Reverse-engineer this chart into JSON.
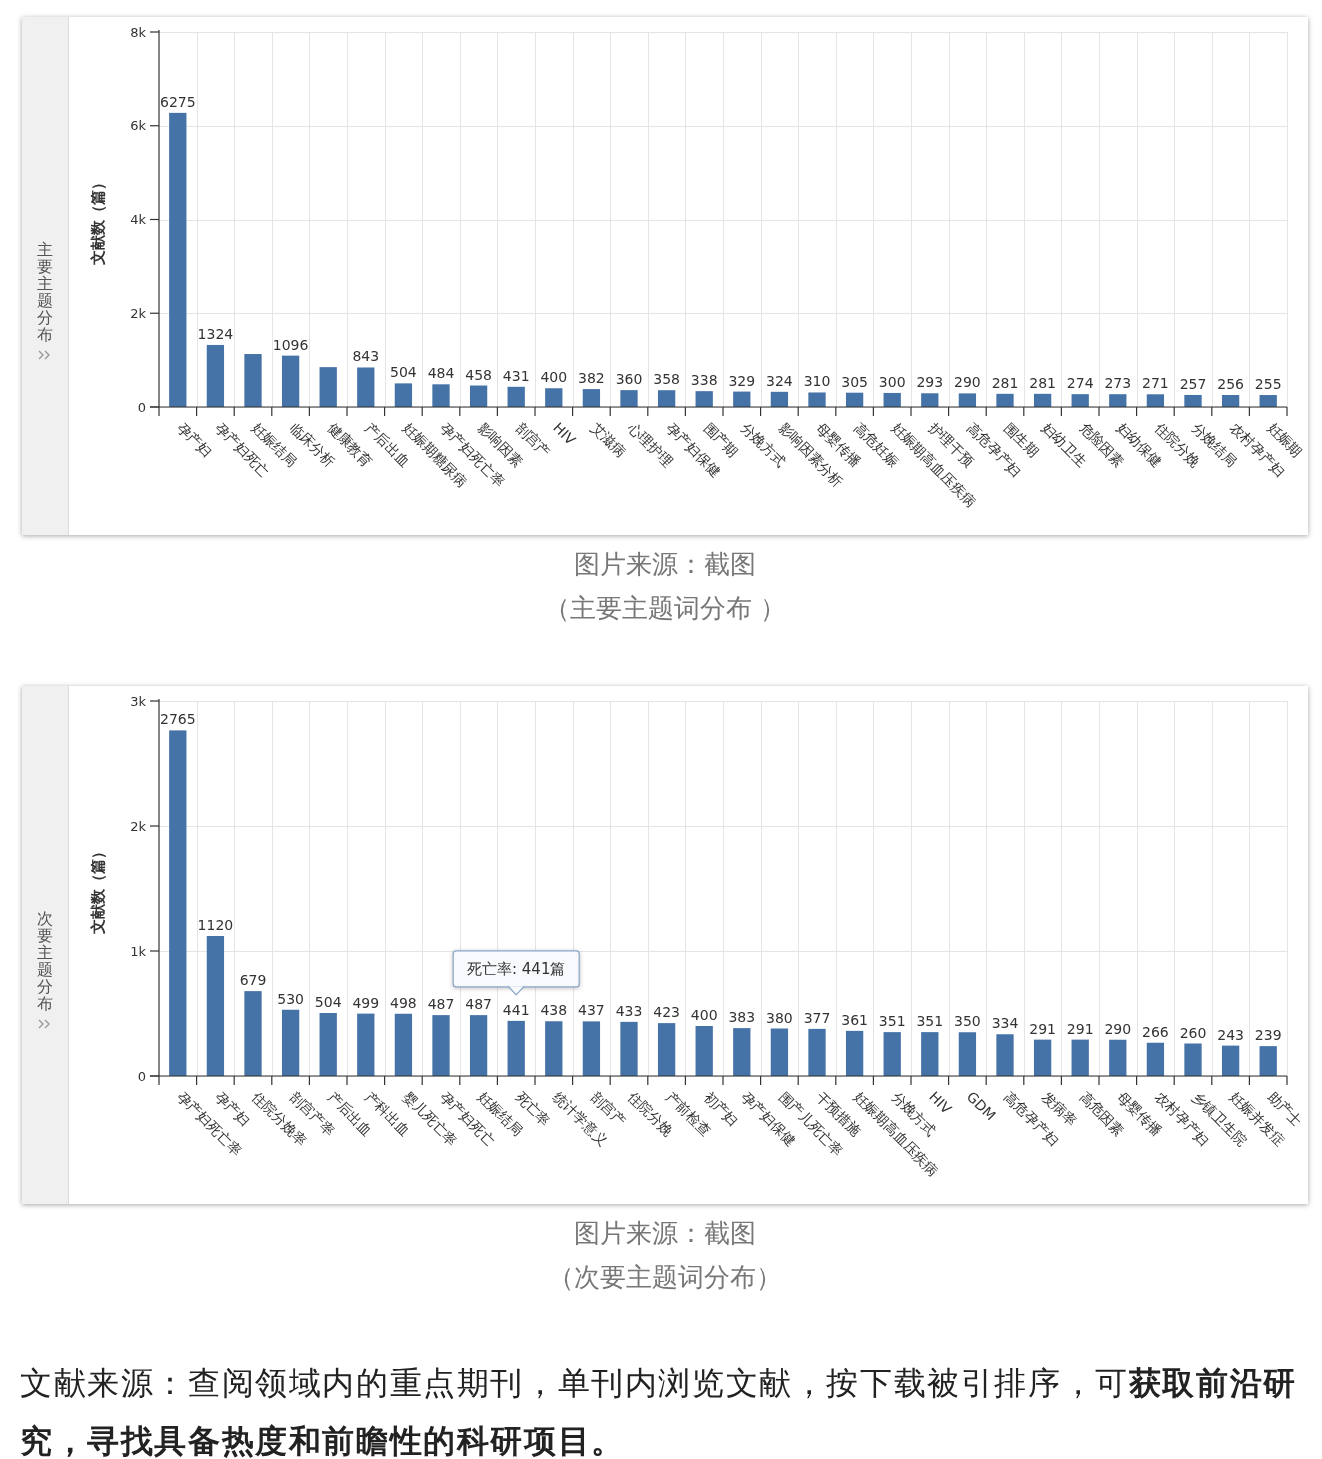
{
  "chart_data": [
    {
      "type": "bar",
      "title": "主要主题分布",
      "ylabel": "文献数（篇）",
      "categories": [
        "孕产妇",
        "孕产妇死亡",
        "妊娠结局",
        "临床分析",
        "健康教育",
        "产后出血",
        "妊娠期糖尿病",
        "孕产妇死亡率",
        "影响因素",
        "剖宫产",
        "HIV",
        "艾滋病",
        "心理护理",
        "孕产妇保健",
        "围产期",
        "分娩方式",
        "影响因素分析",
        "母婴传播",
        "高危妊娠",
        "妊娠期高血压疾病",
        "护理干预",
        "高危孕产妇",
        "围生期",
        "妇幼卫生",
        "危险因素",
        "妇幼保健",
        "住院分娩",
        "分娩结局",
        "农村孕产妇",
        "妊娠期"
      ],
      "values": [
        6275,
        1324,
        1130,
        1096,
        850,
        843,
        504,
        484,
        458,
        431,
        400,
        382,
        360,
        358,
        338,
        329,
        324,
        310,
        305,
        300,
        293,
        290,
        281,
        281,
        274,
        273,
        271,
        257,
        256,
        255
      ],
      "value_labels": [
        "6275",
        "1324",
        null,
        "1096",
        null,
        "843",
        "504",
        "484",
        "458",
        "431",
        "400",
        "382",
        "360",
        "358",
        "338",
        "329",
        "324",
        "310",
        "305",
        "300",
        "293",
        "290",
        "281",
        "281",
        "274",
        "273",
        "271",
        "257",
        "256",
        "255"
      ],
      "color": "#4572a7",
      "ylim": [
        0,
        8000
      ],
      "yticks": [
        0,
        {
          "value": 2000,
          "label": "2k"
        },
        {
          "value": 4000,
          "label": "4k"
        },
        {
          "value": 6000,
          "label": "6k"
        },
        {
          "value": 8000,
          "label": "8k"
        }
      ],
      "grid": true,
      "annotations": [
        "图片来源：截图",
        "（主要主题词分布 ）"
      ]
    },
    {
      "type": "bar",
      "title": "次要主题分布",
      "ylabel": "文献数（篇）",
      "categories": [
        "孕产妇死亡率",
        "孕产妇",
        "住院分娩率",
        "剖宫产率",
        "产后出血",
        "产科出血",
        "婴儿死亡率",
        "孕产妇死亡",
        "妊娠结局",
        "死亡率",
        "统计学意义",
        "剖宫产",
        "住院分娩",
        "产前检查",
        "初产妇",
        "孕产妇保健",
        "围产儿死亡率",
        "干预措施",
        "妊娠期高血压疾病",
        "分娩方式",
        "HIV",
        "GDM",
        "高危孕产妇",
        "发病率",
        "高危因素",
        "母婴传播",
        "农村孕产妇",
        "乡镇卫生院",
        "妊娠并发症",
        "助产士"
      ],
      "values": [
        2765,
        1120,
        679,
        530,
        504,
        499,
        498,
        487,
        487,
        441,
        438,
        437,
        433,
        423,
        400,
        383,
        380,
        377,
        361,
        351,
        351,
        350,
        334,
        291,
        291,
        290,
        266,
        260,
        243,
        239
      ],
      "data_labels": true,
      "color": "#4572a7",
      "ylim": [
        0,
        3000
      ],
      "yticks": [
        0,
        {
          "value": 1000,
          "label": "1k"
        },
        {
          "value": 2000,
          "label": "2k"
        },
        {
          "value": 3000,
          "label": "3k"
        }
      ],
      "grid": true,
      "annotations": [
        {
          "text": "死亡率: 441篇",
          "x": "死亡率",
          "y": 441
        },
        "图片来源：截图",
        "（次要主题词分布）"
      ]
    },
    {
      "type": "other",
      "annotations": [
        "文献来源：查阅领域内的重点期刊，单刊内浏览文献，按下载被引排序，可",
        "获取前沿研",
        "究，寻找具备热度和前瞻性的科研项目。"
      ]
    }
  ]
}
